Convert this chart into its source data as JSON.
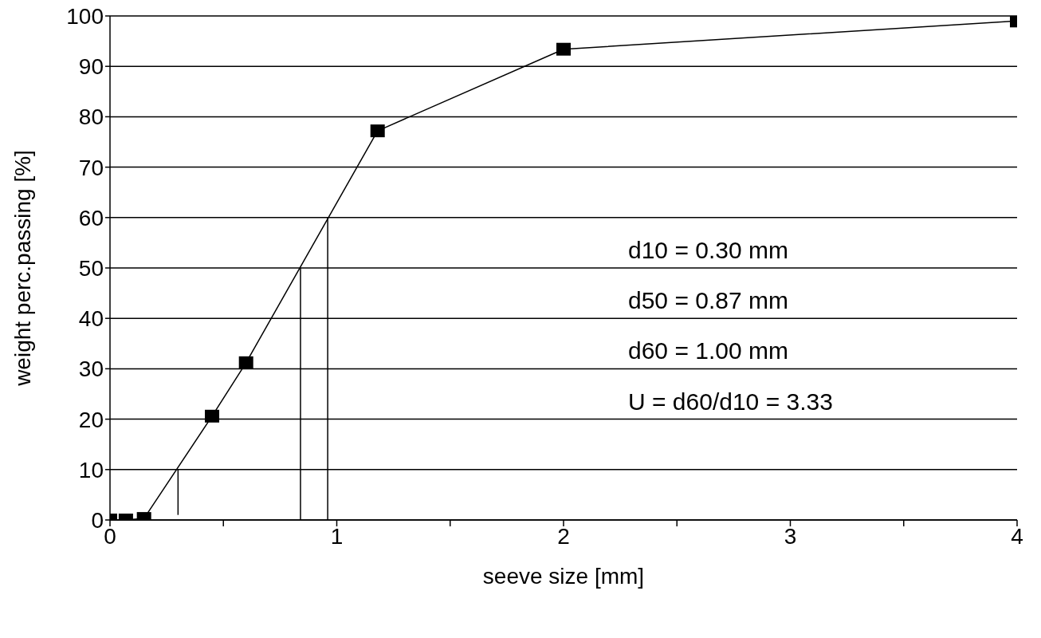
{
  "chart_data": {
    "type": "line",
    "xlabel": "seeve size [mm]",
    "ylabel": "weight perc.passing [%]",
    "xlim": [
      0,
      4
    ],
    "xticks": [
      0,
      {
        "value": 0.5,
        "label": null
      },
      1,
      {
        "value": 1.5,
        "label": null
      },
      2,
      {
        "value": 2.5,
        "label": null
      },
      3,
      {
        "value": 3.5,
        "label": null
      },
      4
    ],
    "ylim": [
      0,
      100
    ],
    "yticks": [
      0,
      10,
      20,
      30,
      40,
      50,
      60,
      70,
      80,
      90,
      100
    ],
    "grid": "y",
    "marker": "square",
    "line_style": "solid",
    "series": [
      {
        "color": "#000000",
        "x": [
          0,
          0.07,
          0.15,
          0.45,
          0.6,
          1.18,
          2,
          4
        ],
        "values": [
          0,
          0,
          0.3,
          20.6,
          31.2,
          77.2,
          93.4,
          99
        ]
      },
      {
        "type": "line",
        "marker": "none",
        "color": "#000000",
        "x": [
          0.3,
          0.3
        ],
        "values": [
          1,
          10
        ]
      },
      {
        "type": "line",
        "marker": "none",
        "color": "#000000",
        "x": [
          0.84,
          0.84
        ],
        "values": [
          0,
          50
        ]
      },
      {
        "type": "line",
        "marker": "none",
        "color": "#000000",
        "x": [
          0.96,
          0.96
        ],
        "values": [
          0,
          60
        ]
      }
    ],
    "annotations": [
      "d10 = 0.30 mm",
      "d50 = 0.87 mm",
      "d60 = 1.00 mm",
      "U = d60/d10 = 3.33"
    ]
  }
}
